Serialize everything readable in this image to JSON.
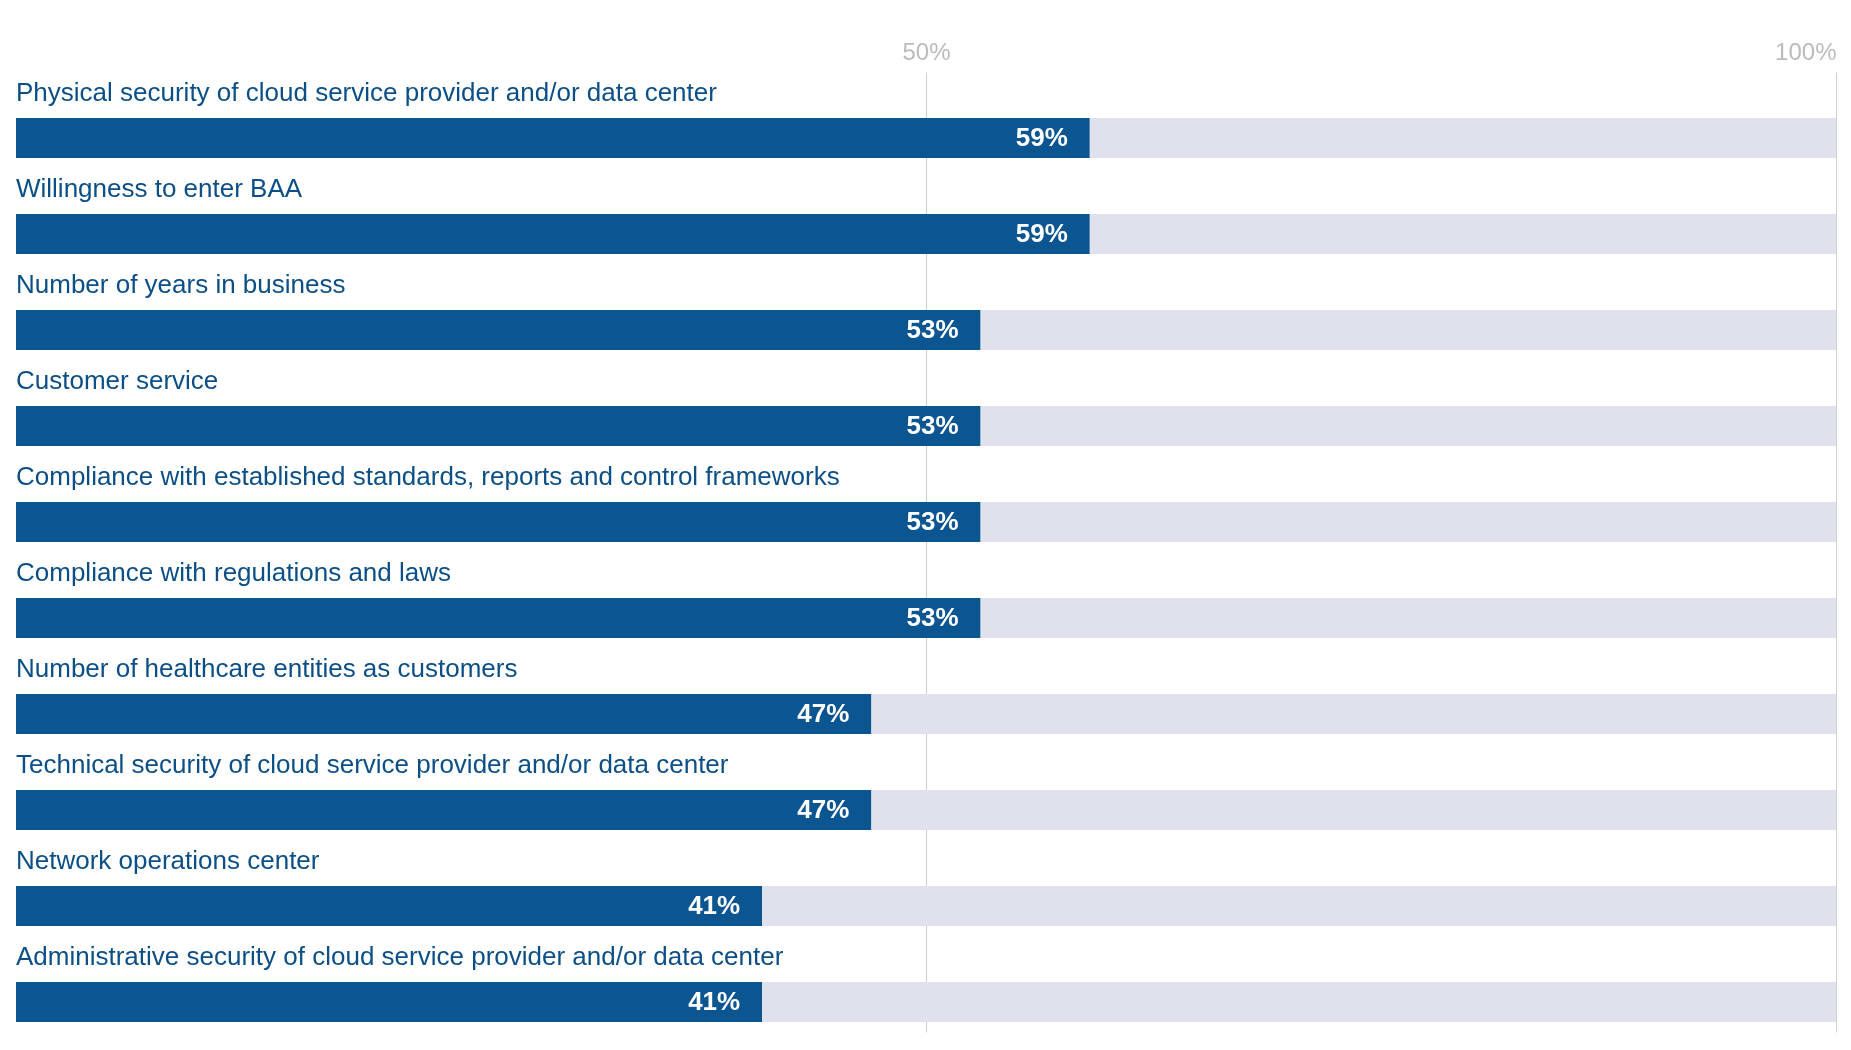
{
  "chart_data": {
    "type": "bar",
    "orientation": "horizontal",
    "stacked": true,
    "categories": [
      "Physical security of cloud service provider and/or data center",
      "Willingness to enter BAA",
      "Number of years in business",
      "Customer service",
      "Compliance with established standards, reports and control frameworks",
      "Compliance with regulations and laws",
      "Number of healthcare entities as customers",
      "Technical security of cloud service provider and/or data center",
      "Network operations center",
      "Administrative security of cloud service provider and/or data center"
    ],
    "series": [
      {
        "color": "#0b5690",
        "values": [
          59,
          59,
          53,
          53,
          53,
          53,
          47,
          47,
          41,
          41
        ],
        "value_labels": [
          "59%",
          "59%",
          "53%",
          "53%",
          "53%",
          "53%",
          "47%",
          "47%",
          "41%",
          "41%"
        ]
      },
      {
        "color": "#dfe2ec",
        "values": [
          41,
          41,
          47,
          47,
          47,
          47,
          53,
          53,
          59,
          59
        ]
      }
    ],
    "xlim": [
      0,
      100
    ],
    "xticks": [
      {
        "value": 50,
        "label": "50%"
      },
      {
        "value": 100,
        "label": "100%"
      }
    ],
    "grid": "x"
  }
}
